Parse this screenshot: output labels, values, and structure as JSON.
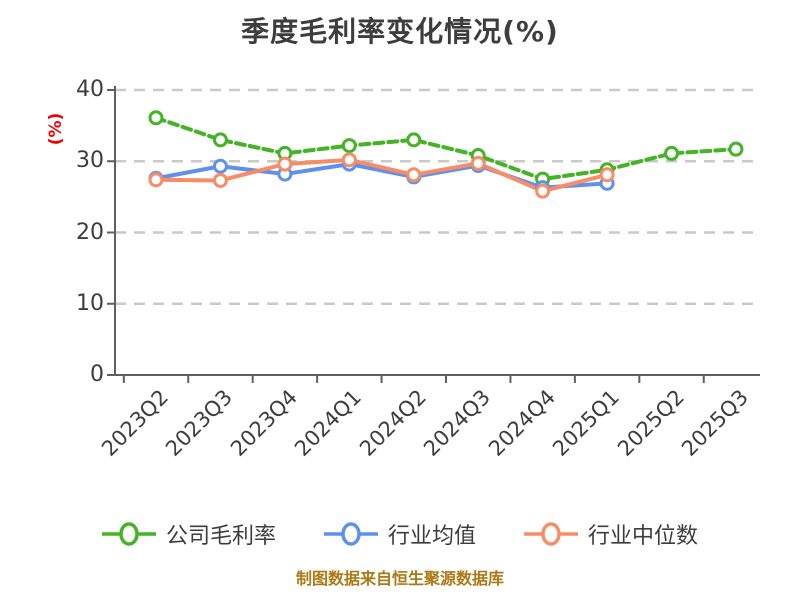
{
  "title": "季度毛利率变化情况(%)",
  "ylabel": "(%)",
  "footer": "制图数据来自恒生聚源数据库",
  "colors": {
    "background": "#ffffff",
    "title_text": "#3d3d3d",
    "tick_text": "#3d3d3d",
    "ylabel_text": "#ee0000",
    "footer_text": "#ab7a16",
    "gridline": "#c9c9c9",
    "axis_spine": "#5f5f5f",
    "series_company": "#44b326",
    "series_mean": "#5f90ee",
    "series_median": "#f78d67",
    "marker_fill": "#ffffff"
  },
  "chart_data": {
    "type": "line",
    "title": "季度毛利率变化情况(%)",
    "xlabel": "",
    "ylabel": "(%)",
    "ylim": [
      0,
      40
    ],
    "yticks": [
      0,
      10,
      20,
      30,
      40
    ],
    "grid": "horizontal dashed",
    "legend_position": "bottom",
    "categories": [
      "2023Q2",
      "2023Q3",
      "2023Q4",
      "2024Q1",
      "2024Q2",
      "2024Q3",
      "2024Q4",
      "2025Q1",
      "2025Q2",
      "2025Q3"
    ],
    "series": [
      {
        "id": "company-margin",
        "name": "公司毛利率",
        "color": "#44b326",
        "line_style": "dashed",
        "marker": "circle-white-fill",
        "values": [
          36.1,
          33.0,
          31.1,
          32.2,
          33.0,
          30.8,
          27.5,
          28.8,
          31.1,
          31.7
        ]
      },
      {
        "id": "industry-mean",
        "name": "行业均值",
        "color": "#5f90ee",
        "line_style": "solid",
        "marker": "circle-white-fill",
        "values": [
          27.6,
          29.3,
          28.2,
          29.6,
          27.8,
          29.4,
          26.3,
          26.9,
          null,
          null
        ]
      },
      {
        "id": "industry-median",
        "name": "行业中位数",
        "color": "#f78d67",
        "line_style": "solid",
        "marker": "circle-white-fill",
        "values": [
          27.4,
          27.3,
          29.6,
          30.2,
          28.1,
          29.7,
          25.8,
          28.1,
          null,
          null
        ]
      }
    ]
  }
}
